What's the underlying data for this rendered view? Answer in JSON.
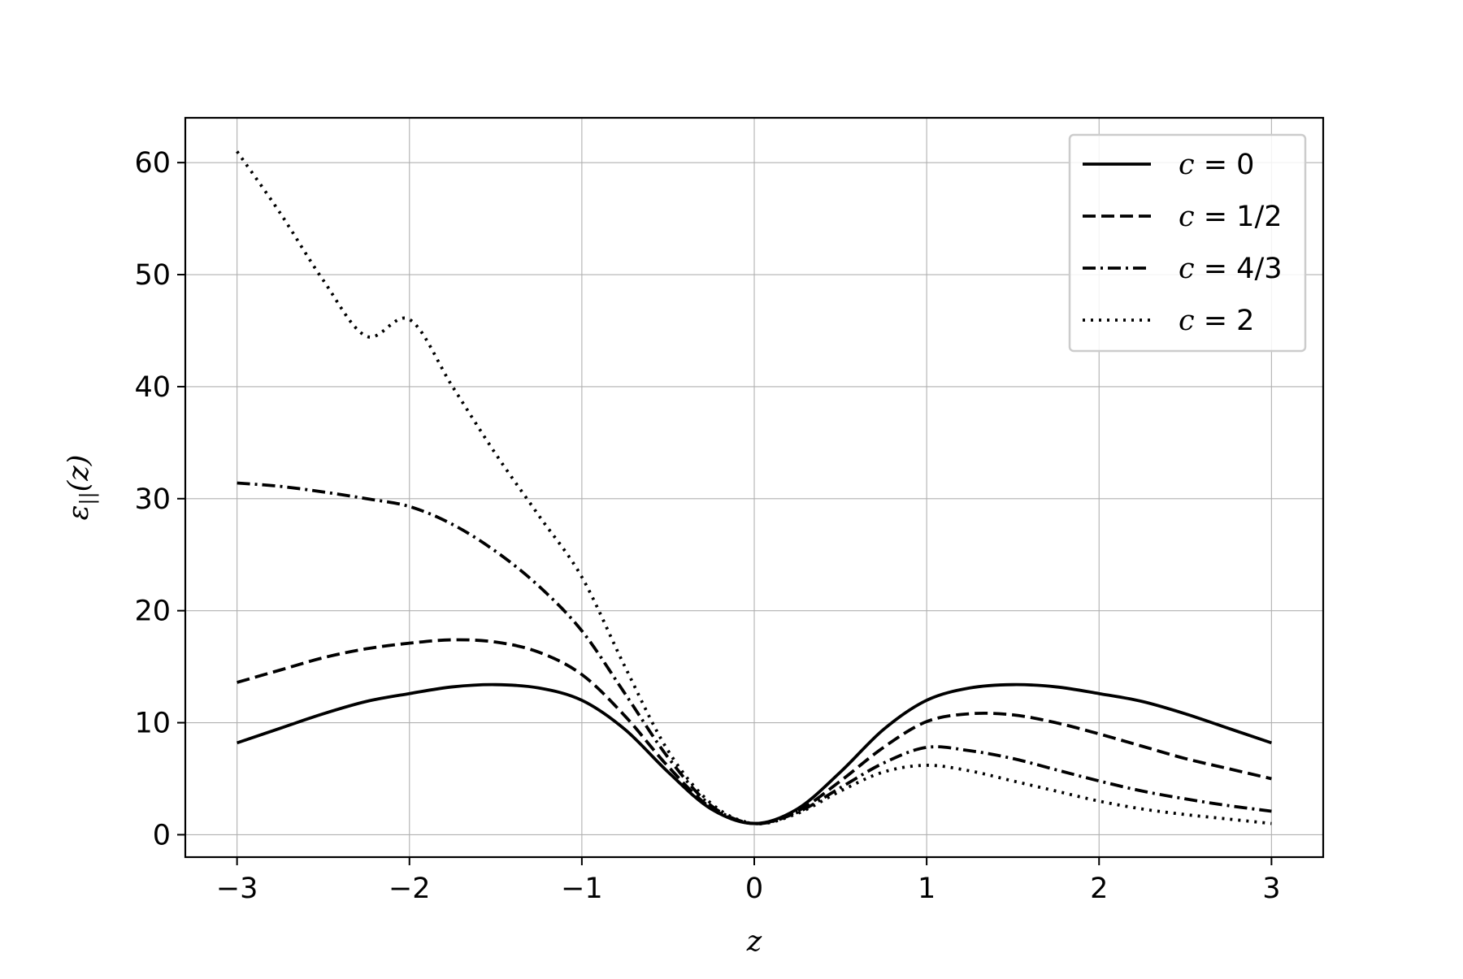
{
  "chart_data": {
    "type": "line",
    "title": "",
    "xlabel": "z",
    "ylabel": {
      "main": "ε",
      "subscript": "||",
      "suffix": "(z)"
    },
    "xlim": [
      -3.3,
      3.3
    ],
    "ylim": [
      -2,
      64
    ],
    "xticks": [
      -3,
      -2,
      -1,
      0,
      1,
      2,
      3
    ],
    "xtick_labels": [
      "−3",
      "−2",
      "−1",
      "0",
      "1",
      "2",
      "3"
    ],
    "yticks": [
      0,
      10,
      20,
      30,
      40,
      50,
      60
    ],
    "ytick_labels": [
      "0",
      "10",
      "20",
      "30",
      "40",
      "50",
      "60"
    ],
    "grid": true,
    "legend_position": "top-right",
    "x": [
      -3.0,
      -2.75,
      -2.5,
      -2.25,
      -2.0,
      -1.75,
      -1.5,
      -1.25,
      -1.0,
      -0.75,
      -0.5,
      -0.25,
      0.0,
      0.25,
      0.5,
      0.75,
      1.0,
      1.25,
      1.5,
      1.75,
      2.0,
      2.25,
      2.5,
      2.75,
      3.0
    ],
    "series": [
      {
        "name": "c = 0",
        "var": "c",
        "value": "0",
        "dash": "solid",
        "values": [
          8.2,
          9.5,
          10.8,
          11.9,
          12.6,
          13.2,
          13.4,
          13.1,
          12.0,
          9.4,
          5.6,
          2.3,
          1.0,
          2.3,
          5.6,
          9.4,
          12.0,
          13.1,
          13.4,
          13.2,
          12.6,
          11.9,
          10.8,
          9.5,
          8.2
        ]
      },
      {
        "name": "c = 1/2",
        "var": "c",
        "value": "1/2",
        "dash": "dashed",
        "values": [
          13.6,
          14.7,
          15.8,
          16.6,
          17.1,
          17.4,
          17.2,
          16.3,
          14.3,
          10.6,
          6.1,
          2.4,
          1.0,
          2.1,
          4.8,
          7.8,
          10.1,
          10.8,
          10.7,
          10.0,
          9.0,
          7.9,
          6.8,
          5.9,
          5.0
        ]
      },
      {
        "name": "c = 4/3",
        "var": "c",
        "value": "4/3",
        "dash": "dashdot",
        "values": [
          31.4,
          31.1,
          30.6,
          30.0,
          29.3,
          27.7,
          25.3,
          22.2,
          18.2,
          12.6,
          6.9,
          2.6,
          1.0,
          2.0,
          4.2,
          6.4,
          7.8,
          7.5,
          6.8,
          5.8,
          4.8,
          3.9,
          3.2,
          2.6,
          2.1
        ]
      },
      {
        "name": "c = 2",
        "var": "c",
        "value": "2",
        "dash": "dotted",
        "values": [
          61.0,
          55.5,
          49.5,
          44.5,
          46.0,
          40.0,
          34.0,
          28.5,
          23.0,
          15.0,
          7.5,
          2.8,
          1.0,
          1.9,
          3.9,
          5.6,
          6.2,
          5.7,
          4.8,
          3.9,
          3.0,
          2.3,
          1.8,
          1.4,
          1.0
        ]
      }
    ]
  }
}
